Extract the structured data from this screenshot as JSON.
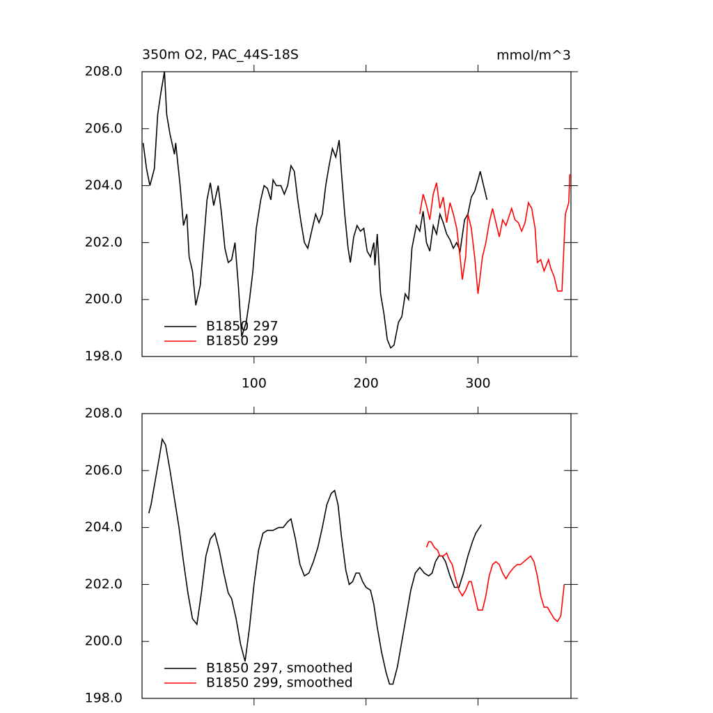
{
  "chart_data": [
    {
      "type": "line",
      "title": "350m O2, PAC_44S-18S",
      "units": "mmol/m^3",
      "xlim": [
        0,
        383
      ],
      "xticks": [
        100,
        200,
        300
      ],
      "ylim": [
        198,
        208
      ],
      "yticks": [
        {
          "value": 198,
          "label": "198.0"
        },
        {
          "value": 200,
          "label": "200.0"
        },
        {
          "value": 202,
          "label": "202.0"
        },
        {
          "value": 204,
          "label": "204.0"
        },
        {
          "value": 206,
          "label": "206.0"
        },
        {
          "value": 208,
          "label": "208.0"
        }
      ],
      "series": [
        {
          "name": "B1850 297",
          "color": "#000000",
          "x": [
            1,
            4,
            7,
            11,
            14,
            17,
            20,
            22,
            25,
            29,
            30,
            34,
            37,
            40,
            42,
            45,
            48,
            52,
            55,
            58,
            61,
            64,
            68,
            71,
            74,
            77,
            80,
            83,
            86,
            89,
            93,
            96,
            99,
            102,
            106,
            109,
            112,
            115,
            117,
            120,
            124,
            127,
            130,
            133,
            136,
            139,
            142,
            145,
            148,
            152,
            155,
            158,
            161,
            164,
            167,
            170,
            173,
            176,
            178,
            181,
            184,
            186,
            189,
            192,
            195,
            198,
            201,
            204,
            207,
            208,
            210,
            213,
            216,
            219,
            222,
            225,
            229,
            232,
            235,
            238,
            241,
            245,
            248,
            251,
            254,
            257,
            260,
            263,
            266,
            269,
            272,
            275,
            278,
            281,
            284,
            288,
            291,
            294,
            297,
            300,
            302,
            305,
            308
          ],
          "values": [
            205.5,
            204.6,
            204.0,
            204.6,
            206.5,
            207.3,
            208.0,
            206.5,
            205.8,
            205.1,
            205.5,
            204.0,
            202.6,
            203.0,
            201.5,
            201.0,
            199.8,
            200.5,
            202.0,
            203.5,
            204.1,
            203.3,
            204.0,
            203.0,
            201.8,
            201.3,
            201.4,
            202.0,
            200.5,
            198.7,
            199.2,
            200.0,
            201.0,
            202.5,
            203.5,
            204.0,
            203.9,
            203.5,
            204.2,
            204.0,
            204.0,
            203.7,
            204.0,
            204.7,
            204.5,
            203.5,
            202.7,
            202.0,
            201.8,
            202.5,
            203.0,
            202.7,
            203.0,
            204.0,
            204.7,
            205.3,
            205.0,
            205.6,
            204.5,
            203.0,
            201.8,
            201.3,
            202.2,
            202.6,
            202.4,
            202.5,
            201.7,
            201.5,
            202.0,
            201.2,
            202.3,
            200.2,
            199.5,
            198.6,
            198.3,
            198.4,
            199.2,
            199.4,
            200.2,
            200.0,
            201.8,
            202.6,
            202.4,
            203.1,
            202.0,
            201.7,
            202.6,
            202.3,
            203.0,
            202.7,
            202.3,
            202.1,
            201.8,
            202.0,
            201.7,
            202.8,
            203.0,
            203.6,
            203.8,
            204.2,
            204.5,
            204.0,
            203.5
          ]
        },
        {
          "name": "B1850 299",
          "color": "#ff0000",
          "x": [
            248,
            251,
            254,
            257,
            260,
            263,
            266,
            269,
            272,
            275,
            278,
            281,
            284,
            286,
            289,
            291,
            294,
            297,
            300,
            304,
            307,
            310,
            313,
            316,
            319,
            322,
            325,
            330,
            333,
            336,
            339,
            342,
            345,
            348,
            351,
            353,
            356,
            359,
            363,
            365,
            368,
            371,
            375,
            378,
            381,
            382
          ],
          "values": [
            203.0,
            203.7,
            203.3,
            202.8,
            203.7,
            204.1,
            203.2,
            203.6,
            202.7,
            203.4,
            203.0,
            202.5,
            201.5,
            200.7,
            201.5,
            203.0,
            202.5,
            201.5,
            200.2,
            201.5,
            202.0,
            202.7,
            203.2,
            202.7,
            202.2,
            202.8,
            202.6,
            203.2,
            202.8,
            202.7,
            202.4,
            202.7,
            203.4,
            203.2,
            202.5,
            201.3,
            201.4,
            201.0,
            201.4,
            201.1,
            200.8,
            200.3,
            200.3,
            203.0,
            203.4,
            204.4
          ]
        }
      ]
    },
    {
      "type": "line",
      "xlim": [
        0,
        383
      ],
      "xticks": [
        100,
        200,
        300
      ],
      "ylim": [
        198,
        208
      ],
      "yticks": [
        {
          "value": 198,
          "label": "198.0"
        },
        {
          "value": 200,
          "label": "200.0"
        },
        {
          "value": 202,
          "label": "202.0"
        },
        {
          "value": 204,
          "label": "204.0"
        },
        {
          "value": 206,
          "label": "206.0"
        },
        {
          "value": 208,
          "label": "208.0"
        }
      ],
      "series": [
        {
          "name": "B1850 297, smoothed",
          "color": "#000000",
          "x": [
            6,
            8,
            12,
            16,
            18,
            21,
            25,
            29,
            33,
            37,
            41,
            45,
            49,
            53,
            57,
            61,
            65,
            69,
            73,
            77,
            80,
            84,
            88,
            92,
            96,
            100,
            104,
            108,
            112,
            117,
            122,
            126,
            130,
            133,
            137,
            141,
            145,
            149,
            153,
            157,
            161,
            165,
            169,
            172,
            175,
            178,
            182,
            185,
            188,
            191,
            194,
            197,
            200,
            204,
            207,
            210,
            214,
            218,
            221,
            224,
            228,
            232,
            236,
            240,
            244,
            248,
            252,
            256,
            259,
            262,
            265,
            268,
            271,
            275,
            279,
            283,
            287,
            291,
            295,
            298,
            303
          ],
          "values": [
            204.5,
            204.8,
            205.7,
            206.6,
            207.1,
            206.9,
            206.0,
            205.0,
            204.0,
            202.8,
            201.7,
            200.8,
            200.6,
            201.7,
            203.0,
            203.6,
            203.8,
            203.2,
            202.4,
            201.7,
            201.5,
            200.8,
            199.9,
            199.3,
            200.5,
            202.0,
            203.2,
            203.8,
            203.9,
            203.9,
            204.0,
            204.0,
            204.2,
            204.3,
            203.6,
            202.7,
            202.3,
            202.4,
            202.8,
            203.3,
            204.0,
            204.8,
            205.2,
            205.3,
            204.8,
            203.7,
            202.5,
            202.0,
            202.1,
            202.4,
            202.4,
            202.1,
            201.9,
            201.8,
            201.3,
            200.5,
            199.6,
            198.9,
            198.5,
            198.5,
            199.1,
            200.0,
            200.9,
            201.8,
            202.4,
            202.6,
            202.4,
            202.3,
            202.4,
            202.8,
            203.0,
            203.0,
            202.8,
            202.3,
            201.9,
            201.9,
            202.4,
            203.0,
            203.5,
            203.8,
            204.1
          ]
        },
        {
          "name": "B1850 299, smoothed",
          "color": "#ff0000",
          "x": [
            254,
            256,
            258,
            261,
            264,
            266,
            269,
            272,
            274,
            277,
            280,
            283,
            286,
            289,
            292,
            294,
            297,
            300,
            304,
            307,
            310,
            313,
            316,
            319,
            322,
            325,
            328,
            332,
            335,
            338,
            341,
            344,
            347,
            350,
            353,
            356,
            359,
            362,
            365,
            368,
            371,
            374,
            377
          ],
          "values": [
            203.3,
            203.5,
            203.5,
            203.3,
            203.2,
            203.0,
            203.0,
            203.1,
            202.9,
            202.7,
            202.2,
            201.8,
            201.6,
            201.8,
            202.1,
            202.1,
            201.6,
            201.1,
            201.1,
            201.6,
            202.3,
            202.7,
            202.8,
            202.7,
            202.4,
            202.2,
            202.4,
            202.6,
            202.7,
            202.7,
            202.8,
            202.9,
            203.0,
            202.8,
            202.3,
            201.6,
            201.2,
            201.2,
            201.0,
            200.8,
            200.7,
            200.9,
            202.0
          ]
        }
      ]
    }
  ]
}
